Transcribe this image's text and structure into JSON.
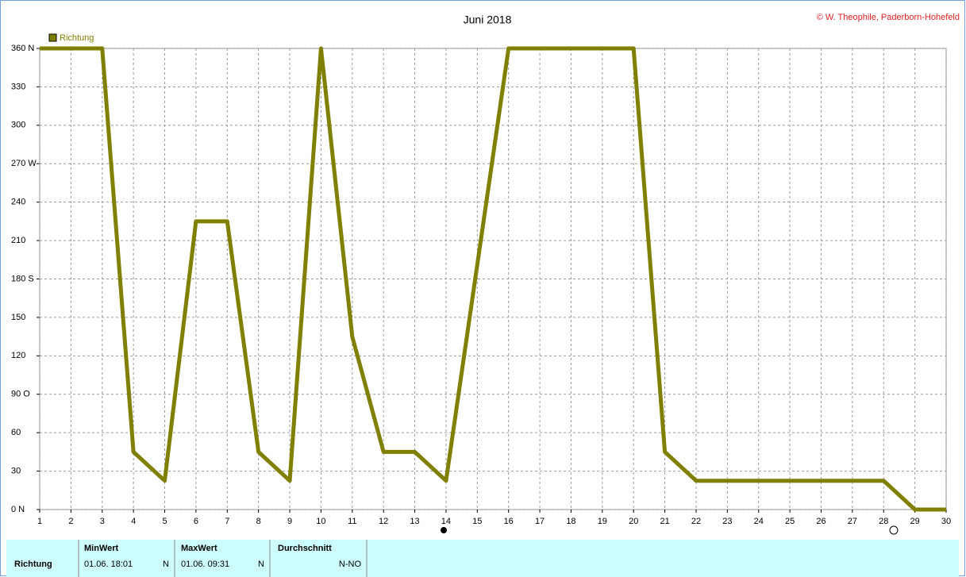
{
  "chart_data": {
    "type": "line",
    "title": "Juni 2018",
    "credit": "© W. Theophile, Paderborn-Hohefeld",
    "x": [
      1,
      3,
      4,
      5,
      6,
      7,
      8,
      9,
      10,
      11,
      12,
      13,
      14,
      16,
      20,
      21,
      22,
      28,
      29,
      30
    ],
    "series": [
      {
        "name": "Richtung",
        "color": "#7f7f00",
        "values": [
          360,
          360,
          45,
          22.5,
          225,
          225,
          45,
          22.5,
          360,
          135,
          45,
          45,
          22.5,
          360,
          360,
          45,
          22.5,
          22.5,
          0,
          0
        ]
      }
    ],
    "xlim": [
      1,
      30
    ],
    "xticks": [
      1,
      2,
      3,
      4,
      5,
      6,
      7,
      8,
      9,
      10,
      11,
      12,
      13,
      14,
      15,
      16,
      17,
      18,
      19,
      20,
      21,
      22,
      23,
      24,
      25,
      26,
      27,
      28,
      29,
      30
    ],
    "ylim": [
      0,
      360
    ],
    "yticks": [
      {
        "value": 0,
        "label": "0   N"
      },
      30,
      60,
      {
        "value": 90,
        "label": "90  O"
      },
      120,
      150,
      {
        "value": 180,
        "label": "180 S"
      },
      210,
      240,
      {
        "value": 270,
        "label": "270 W"
      },
      300,
      330,
      {
        "value": 360,
        "label": "360 N"
      }
    ],
    "grid": true
  },
  "table": {
    "headers": [
      "MinWert",
      "MaxWert",
      "Durchschnitt"
    ],
    "row": [
      "Richtung",
      "01.06. 18:01",
      "N",
      "01.06. 09:31",
      "N",
      "N-NO"
    ]
  }
}
